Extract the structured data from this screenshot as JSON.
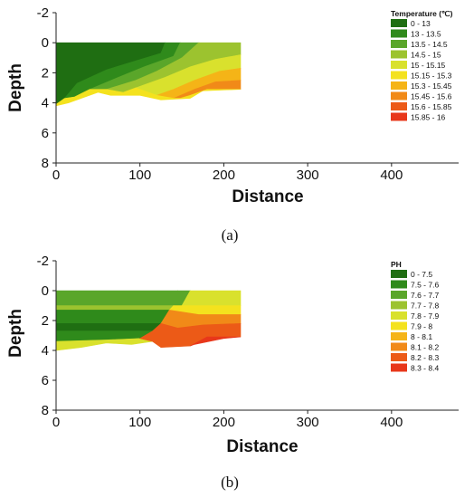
{
  "colors": {
    "c0": "#1f6e12",
    "c1": "#2f8a1b",
    "c2": "#5aa62a",
    "c3": "#9cc32f",
    "c4": "#d9e12d",
    "c5": "#f4e21e",
    "c6": "#f5b417",
    "c7": "#f18a18",
    "c8": "#ec5a17",
    "c9": "#e8371a"
  },
  "chart_data": [
    {
      "type": "heatmap",
      "panel_label": "(a)",
      "xlabel": "Distance",
      "ylabel": "Depth",
      "xlim": [
        0,
        480
      ],
      "ylim": [
        -2,
        8
      ],
      "y_inverted": true,
      "xticks": [
        "0",
        "100",
        "200",
        "300",
        "400"
      ],
      "yticks": [
        "-2",
        "0",
        "2",
        "4",
        "6",
        "8"
      ],
      "legend_title": "Temperature (℃)",
      "legend": [
        "0 - 13",
        "13 - 13.5",
        "13.5 - 14.5",
        "14.5 - 15",
        "15 - 15.15",
        "15.15 - 15.3",
        "15.3 - 15.45",
        "15.45 - 15.6",
        "15.6 - 15.85",
        "15.85 - 16"
      ],
      "legend_position": "top-right",
      "regions": [
        {
          "class": 0,
          "polygon": [
            [
              0,
              0
            ],
            [
              130,
              0
            ],
            [
              125,
              0.7
            ],
            [
              95,
              1.2
            ],
            [
              60,
              1.8
            ],
            [
              25,
              2.7
            ],
            [
              10,
              3.7
            ],
            [
              0,
              4.1
            ]
          ]
        },
        {
          "class": 1,
          "polygon": [
            [
              130,
              0
            ],
            [
              148,
              0
            ],
            [
              140,
              0.9
            ],
            [
              105,
              1.6
            ],
            [
              70,
              2.4
            ],
            [
              40,
              3.1
            ],
            [
              22,
              3.6
            ],
            [
              10,
              3.7
            ],
            [
              25,
              2.7
            ],
            [
              60,
              1.8
            ],
            [
              95,
              1.2
            ],
            [
              125,
              0.7
            ]
          ]
        },
        {
          "class": 2,
          "polygon": [
            [
              148,
              0
            ],
            [
              170,
              0
            ],
            [
              150,
              1.0
            ],
            [
              120,
              1.9
            ],
            [
              95,
              2.5
            ],
            [
              60,
              3.1
            ],
            [
              40,
              3.1
            ],
            [
              70,
              2.4
            ],
            [
              105,
              1.6
            ],
            [
              140,
              0.9
            ]
          ]
        },
        {
          "class": 3,
          "polygon": [
            [
              170,
              0
            ],
            [
              220,
              0
            ],
            [
              220,
              0.8
            ],
            [
              190,
              1.1
            ],
            [
              160,
              1.6
            ],
            [
              130,
              2.3
            ],
            [
              95,
              3.0
            ],
            [
              80,
              3.3
            ],
            [
              60,
              3.1
            ],
            [
              95,
              2.5
            ],
            [
              120,
              1.9
            ],
            [
              150,
              1.0
            ]
          ]
        },
        {
          "class": 4,
          "polygon": [
            [
              220,
              0.8
            ],
            [
              220,
              1.7
            ],
            [
              195,
              1.9
            ],
            [
              165,
              2.5
            ],
            [
              140,
              3.1
            ],
            [
              120,
              3.5
            ],
            [
              95,
              3.0
            ],
            [
              130,
              2.3
            ],
            [
              160,
              1.6
            ],
            [
              190,
              1.1
            ]
          ]
        },
        {
          "class": 6,
          "polygon": [
            [
              220,
              1.7
            ],
            [
              220,
              2.5
            ],
            [
              190,
              2.6
            ],
            [
              165,
              3.1
            ],
            [
              140,
              3.7
            ],
            [
              120,
              3.5
            ],
            [
              140,
              3.1
            ],
            [
              165,
              2.5
            ],
            [
              195,
              1.9
            ]
          ]
        },
        {
          "class": 7,
          "polygon": [
            [
              220,
              2.5
            ],
            [
              220,
              3.1
            ],
            [
              180,
              3.1
            ],
            [
              160,
              3.5
            ],
            [
              148,
              3.7
            ],
            [
              140,
              3.7
            ],
            [
              165,
              3.1
            ],
            [
              190,
              2.6
            ]
          ]
        },
        {
          "class": 5,
          "polygon": [
            [
              0,
              4.1
            ],
            [
              10,
              3.7
            ],
            [
              22,
              3.6
            ],
            [
              40,
              3.1
            ],
            [
              60,
              3.1
            ],
            [
              80,
              3.3
            ],
            [
              95,
              3.0
            ],
            [
              120,
              3.5
            ],
            [
              140,
              3.7
            ],
            [
              148,
              3.7
            ],
            [
              160,
              3.5
            ],
            [
              180,
              3.1
            ],
            [
              220,
              3.1
            ],
            [
              220,
              3.1
            ],
            [
              175,
              3.2
            ],
            [
              160,
              3.7
            ],
            [
              125,
              3.8
            ],
            [
              100,
              3.5
            ],
            [
              65,
              3.5
            ],
            [
              50,
              3.3
            ],
            [
              30,
              3.7
            ],
            [
              15,
              4.0
            ],
            [
              0,
              4.2
            ]
          ]
        }
      ]
    },
    {
      "type": "heatmap",
      "panel_label": "(b)",
      "xlabel": "Distance",
      "ylabel": "Depth",
      "xlim": [
        0,
        480
      ],
      "ylim": [
        -2,
        8
      ],
      "y_inverted": true,
      "xticks": [
        "0",
        "100",
        "200",
        "300",
        "400"
      ],
      "yticks": [
        "-2",
        "0",
        "2",
        "4",
        "6",
        "8"
      ],
      "legend_title": "PH",
      "legend": [
        "0 - 7.5",
        "7.5 - 7.6",
        "7.6 - 7.7",
        "7.7 - 7.8",
        "7.8 - 7.9",
        "7.9 - 8",
        "8 - 8.1",
        "8.1 - 8.2",
        "8.2 - 8.3",
        "8.3 - 8.4"
      ],
      "legend_position": "top-right",
      "regions": [
        {
          "class": 2,
          "polygon": [
            [
              0,
              0
            ],
            [
              145,
              0
            ],
            [
              145,
              1.0
            ],
            [
              0,
              1.0
            ]
          ]
        },
        {
          "class": 3,
          "polygon": [
            [
              0,
              1.0
            ],
            [
              140,
              1.0
            ],
            [
              135,
              1.3
            ],
            [
              0,
              1.3
            ]
          ]
        },
        {
          "class": 1,
          "polygon": [
            [
              0,
              1.3
            ],
            [
              135,
              1.3
            ],
            [
              125,
              2.2
            ],
            [
              0,
              2.2
            ]
          ]
        },
        {
          "class": 0,
          "polygon": [
            [
              0,
              2.2
            ],
            [
              125,
              2.2
            ],
            [
              115,
              2.7
            ],
            [
              0,
              2.7
            ]
          ]
        },
        {
          "class": 1,
          "polygon": [
            [
              0,
              2.7
            ],
            [
              115,
              2.7
            ],
            [
              100,
              3.2
            ],
            [
              60,
              3.3
            ],
            [
              0,
              3.4
            ]
          ]
        },
        {
          "class": 4,
          "polygon": [
            [
              0,
              3.4
            ],
            [
              60,
              3.3
            ],
            [
              100,
              3.2
            ],
            [
              115,
              3.4
            ],
            [
              90,
              3.6
            ],
            [
              60,
              3.5
            ],
            [
              30,
              3.8
            ],
            [
              0,
              4.0
            ]
          ]
        },
        {
          "class": 2,
          "polygon": [
            [
              145,
              0
            ],
            [
              160,
              0
            ],
            [
              150,
              1.0
            ],
            [
              145,
              1.0
            ]
          ]
        },
        {
          "class": 4,
          "polygon": [
            [
              160,
              0
            ],
            [
              220,
              0
            ],
            [
              220,
              1.0
            ],
            [
              150,
              1.0
            ]
          ]
        },
        {
          "class": 5,
          "polygon": [
            [
              150,
              1.0
            ],
            [
              220,
              1.0
            ],
            [
              220,
              1.6
            ],
            [
              170,
              1.6
            ],
            [
              135,
              1.3
            ],
            [
              140,
              1.0
            ]
          ]
        },
        {
          "class": 7,
          "polygon": [
            [
              135,
              1.3
            ],
            [
              170,
              1.6
            ],
            [
              220,
              1.6
            ],
            [
              220,
              2.2
            ],
            [
              175,
              2.3
            ],
            [
              145,
              2.5
            ],
            [
              125,
              2.2
            ]
          ]
        },
        {
          "class": 8,
          "polygon": [
            [
              125,
              2.2
            ],
            [
              145,
              2.5
            ],
            [
              175,
              2.3
            ],
            [
              220,
              2.2
            ],
            [
              220,
              3.1
            ],
            [
              180,
              3.1
            ],
            [
              160,
              3.7
            ],
            [
              125,
              3.8
            ],
            [
              115,
              3.4
            ],
            [
              100,
              3.2
            ],
            [
              115,
              2.7
            ]
          ]
        },
        {
          "class": 9,
          "polygon": [
            [
              180,
              3.1
            ],
            [
              220,
              3.1
            ],
            [
              200,
              3.2
            ],
            [
              165,
              3.6
            ],
            [
              160,
              3.7
            ]
          ]
        }
      ]
    }
  ]
}
